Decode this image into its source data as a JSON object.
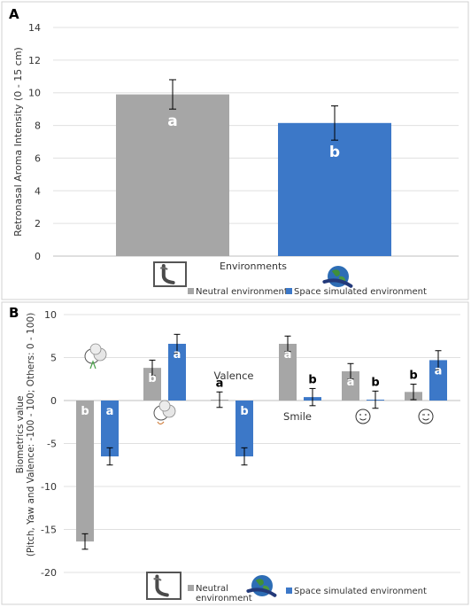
{
  "chart_data": [
    {
      "panel": "A",
      "type": "bar",
      "xlabel": "Environments",
      "ylabel": "Retronasal Aroma Intensity (0 - 15 cm)",
      "ylim": [
        0,
        14
      ],
      "yticks": [
        "0",
        "2",
        "4",
        "6",
        "8",
        "10",
        "12",
        "14"
      ],
      "series": [
        {
          "name": "Neutral environment",
          "value": 9.9,
          "error": 0.9,
          "letter": "a",
          "color": "#A6A6A6"
        },
        {
          "name": "Space simulated environment",
          "value": 8.15,
          "error": 1.05,
          "letter": "b",
          "color": "#3C78C8"
        }
      ],
      "legend": [
        "Neutral environment",
        "Space simulated environment"
      ],
      "legend_icons": [
        "neutral-environment-icon",
        "space-environment-icon"
      ]
    },
    {
      "panel": "B",
      "type": "bar",
      "ylabel": "Biometrics value",
      "ylabel2": "(Pitch, Yaw and Valence: -100 - 100; Others: 0 - 100)",
      "ylim": [
        -20,
        10
      ],
      "yticks": [
        "-20",
        "-15",
        "-10",
        "-5",
        "0",
        "5",
        "10"
      ],
      "categories": [
        {
          "icon": "pitch-face-icon",
          "text": ""
        },
        {
          "icon": "yaw-face-icon",
          "text": ""
        },
        {
          "icon": "",
          "text": "Valence"
        },
        {
          "icon": "",
          "text": "Smile"
        },
        {
          "icon": "neutral-smiley-icon",
          "text": ""
        },
        {
          "icon": "wink-smiley-icon",
          "text": ""
        }
      ],
      "series": [
        {
          "name": "Neutral environment",
          "color": "#A6A6A6",
          "values": [
            -16.4,
            3.8,
            0.1,
            6.6,
            3.4,
            1.0
          ],
          "errors": [
            0.9,
            0.9,
            0.9,
            0.9,
            0.9,
            0.9
          ],
          "letters": [
            "b",
            "b",
            "a",
            "a",
            "a",
            "b"
          ]
        },
        {
          "name": "Space simulated environment",
          "color": "#3C78C8",
          "values": [
            -6.5,
            6.6,
            -6.5,
            0.4,
            0.1,
            4.7
          ],
          "errors": [
            1.0,
            1.1,
            1.0,
            1.0,
            1.0,
            1.1
          ],
          "letters": [
            "a",
            "a",
            "b",
            "b",
            "b",
            "a"
          ]
        }
      ],
      "legend": [
        "Neutral\nenvironment",
        "Space simulated environment"
      ],
      "legend_icons": [
        "neutral-environment-icon",
        "space-environment-icon"
      ]
    }
  ]
}
